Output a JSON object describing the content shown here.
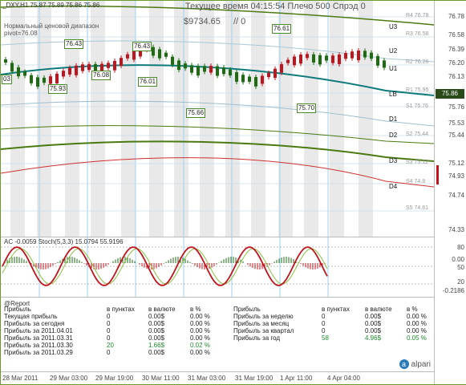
{
  "header": {
    "symbol_line": "_DXY,H1  75.87 75.89 75.86 75.86",
    "time_label": "Текущее время 04:15:54 Плечо 500 Спрэд 0",
    "balance": "$9734.65",
    "ratio": "// 0",
    "range_label_1": "Нормальный ценовой диапазон",
    "range_label_2": "pivot=76.08"
  },
  "price_axis": [
    {
      "label": "76.78",
      "pivot": "R4 76.78"
    },
    {
      "label": "76.58",
      "pivot": "R3 76.58"
    },
    {
      "label": "76.39",
      "pivot": ""
    },
    {
      "label": "76.20",
      "pivot": "R2 76.26"
    },
    {
      "label": "76.13",
      "pivot": ""
    },
    {
      "label": "75.86",
      "pivot": "R1 75.95"
    },
    {
      "label": "75.76",
      "pivot": "S1 75.76"
    },
    {
      "label": "75.53",
      "pivot": ""
    },
    {
      "label": "75.44",
      "pivot": "S2 75.44"
    },
    {
      "label": "75.12",
      "pivot": "S3 75.12"
    },
    {
      "label": "74.93",
      "pivot": ""
    },
    {
      "label": "74.74",
      "pivot": "S4 74.8"
    },
    {
      "label": "74.61",
      "pivot": "S5 74.61"
    },
    {
      "label": "74.33",
      "pivot": ""
    }
  ],
  "current_price": "75.86",
  "levels": [
    "U3",
    "U2",
    "U1",
    "LB",
    "D1",
    "D2",
    "D3",
    "D4"
  ],
  "price_boxes": [
    "76.43",
    "76.43",
    "75.93",
    "76.08",
    "76.01",
    "75.66",
    "76.61",
    "75.70",
    "03"
  ],
  "indicator": {
    "label": "AC -0.0059 Stoch(5,3,3) 15.0794 55.9196",
    "axis": [
      "80",
      "0.00",
      "50",
      "20",
      "-0.2186"
    ]
  },
  "report": {
    "title": "@Report",
    "left_headers": [
      "Прибыль",
      "в пунктах",
      "в валюте",
      "в %"
    ],
    "left_rows": [
      [
        "Текущая прибыль",
        "0",
        "0.00$",
        "0.00 %"
      ],
      [
        "Прибыль за сегодня",
        "0",
        "0.00$",
        "0.00 %"
      ],
      [
        "Прибыль за 2011.04.01",
        "0",
        "0.00$",
        "0.00 %"
      ],
      [
        "Прибыль за 2011.03.31",
        "0",
        "0.00$",
        "0.00 %"
      ],
      [
        "Прибыль за 2011.03.30",
        "20",
        "1.66$",
        "0.02 %"
      ],
      [
        "Прибыль за 2011.03.29",
        "0",
        "0.00$",
        "0.00 %"
      ]
    ],
    "right_headers": [
      "Прибыль",
      "в пунктах",
      "в валюте",
      "в %"
    ],
    "right_rows": [
      [
        "Прибыль за неделю",
        "0",
        "0.00$",
        "0.00 %"
      ],
      [
        "Прибыль за месяц",
        "0",
        "0.00$",
        "0.00 %"
      ],
      [
        "Прибыль за квартал",
        "0",
        "0.00$",
        "0.00 %"
      ],
      [
        "Прибыль за год",
        "58",
        "4.96$",
        "0.05 %"
      ]
    ],
    "logo": "alpari"
  },
  "time_axis": [
    "28 Mar 2011",
    "29 Mar 03:00",
    "29 Mar 19:00",
    "30 Mar 11:00",
    "31 Mar 03:00",
    "31 Mar 19:00",
    "1 Apr 11:00",
    "4 Apr 04:00"
  ],
  "colors": {
    "up": "#1e6b12",
    "down": "#c0141e",
    "ma": "#0f7a7a",
    "band": "#4a7a10",
    "stoch": "#c0141e"
  }
}
